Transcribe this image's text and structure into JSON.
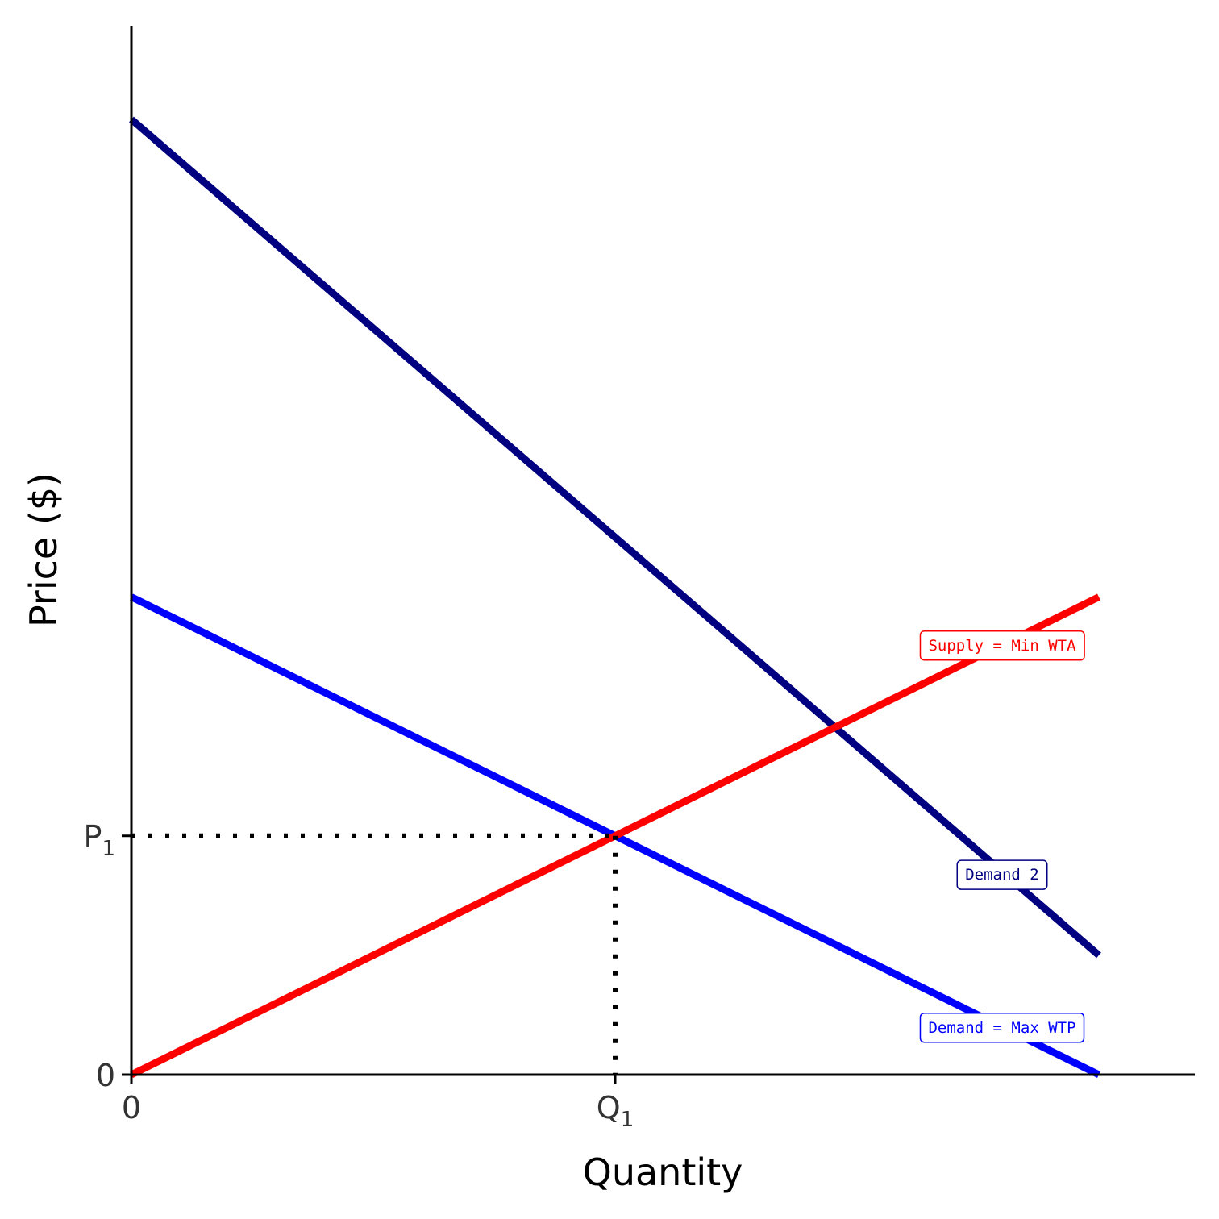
{
  "chart_data": {
    "type": "line",
    "xlabel": "Quantity",
    "ylabel": "Price ($)",
    "xlim": [
      0,
      11
    ],
    "ylim": [
      0,
      11
    ],
    "grid": false,
    "legend": "none",
    "x_ticks": [
      {
        "value": 0,
        "label": "0",
        "sub": ""
      },
      {
        "value": 5,
        "label": "Q",
        "sub": "1"
      }
    ],
    "y_ticks": [
      {
        "value": 0,
        "label": "0",
        "sub": ""
      },
      {
        "value": 2.5,
        "label": "P",
        "sub": "1"
      }
    ],
    "series": [
      {
        "name": "Demand 2",
        "x": [
          0,
          10
        ],
        "y": [
          10,
          1.25
        ],
        "color": "#000080",
        "label_at": {
          "x": 9.0,
          "y": 2.1
        }
      },
      {
        "name": "Demand = Max WTP",
        "x": [
          0,
          10
        ],
        "y": [
          5,
          0
        ],
        "color": "#0000ff",
        "label_at": {
          "x": 9.0,
          "y": 0.5
        }
      },
      {
        "name": "Supply = Min WTA",
        "x": [
          0,
          10
        ],
        "y": [
          0,
          5
        ],
        "color": "#ff0000",
        "label_at": {
          "x": 9.0,
          "y": 4.5
        }
      }
    ],
    "guides": {
      "x": 5,
      "y": 2.5,
      "style": "dotted"
    }
  }
}
